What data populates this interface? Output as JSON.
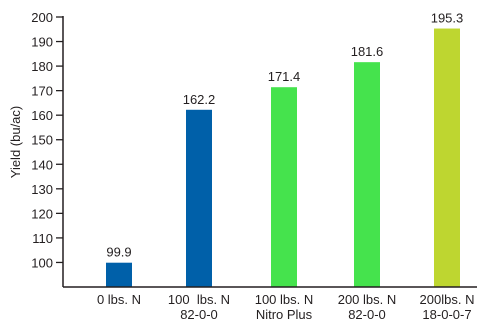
{
  "chart_data": {
    "type": "bar",
    "title": "",
    "xlabel": "",
    "ylabel": "Yield (bu/ac)",
    "ylim": [
      90,
      200
    ],
    "yticks": [
      100,
      110,
      120,
      130,
      140,
      150,
      160,
      170,
      180,
      190,
      200
    ],
    "grid": false,
    "legend": "none",
    "categories": [
      [
        "0 lbs. N"
      ],
      [
        "100  lbs. N",
        "82-0-0"
      ],
      [
        "100 lbs. N",
        "Nitro Plus"
      ],
      [
        "200 lbs. N",
        "82-0-0"
      ],
      [
        "200lbs. N",
        "18-0-0-7"
      ]
    ],
    "values": [
      99.9,
      162.2,
      171.4,
      181.6,
      195.3
    ],
    "data_labels": [
      "99.9",
      "162.2",
      "171.4",
      "181.6",
      "195.3"
    ],
    "bar_colors": [
      "#0060a9",
      "#0060a9",
      "#45e34d",
      "#45e34d",
      "#bed630"
    ],
    "axis_color": "#231f20"
  }
}
